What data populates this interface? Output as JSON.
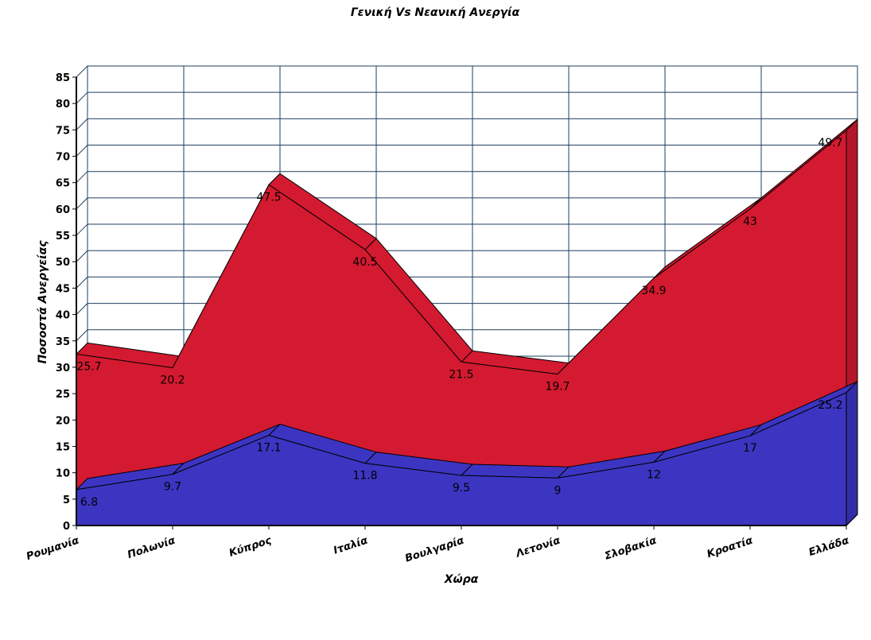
{
  "chart_data": {
    "type": "area",
    "stacked": true,
    "three_d": true,
    "title": "Γενική Vs Νεανική Ανεργία",
    "xlabel": "Χώρα",
    "ylabel": "Ποσοστά Ανεργείας",
    "ylim": [
      0,
      85
    ],
    "ytick_step": 5,
    "grid": true,
    "categories": [
      "Ρουμανία",
      "Πολωνία",
      "Κύπρος",
      "Ιταλία",
      "Βουλγαρία",
      "Λετονία",
      "Σλοβακία",
      "Κροατία",
      "Ελλάδα"
    ],
    "series": [
      {
        "values": [
          6.8,
          9.7,
          17.1,
          11.8,
          9.5,
          9,
          12,
          17,
          25.2
        ],
        "color": "#3c35c2"
      },
      {
        "values": [
          25.7,
          20.2,
          47.5,
          40.5,
          21.5,
          19.7,
          34.9,
          43,
          49.7
        ],
        "color": "#d41a30"
      }
    ]
  }
}
